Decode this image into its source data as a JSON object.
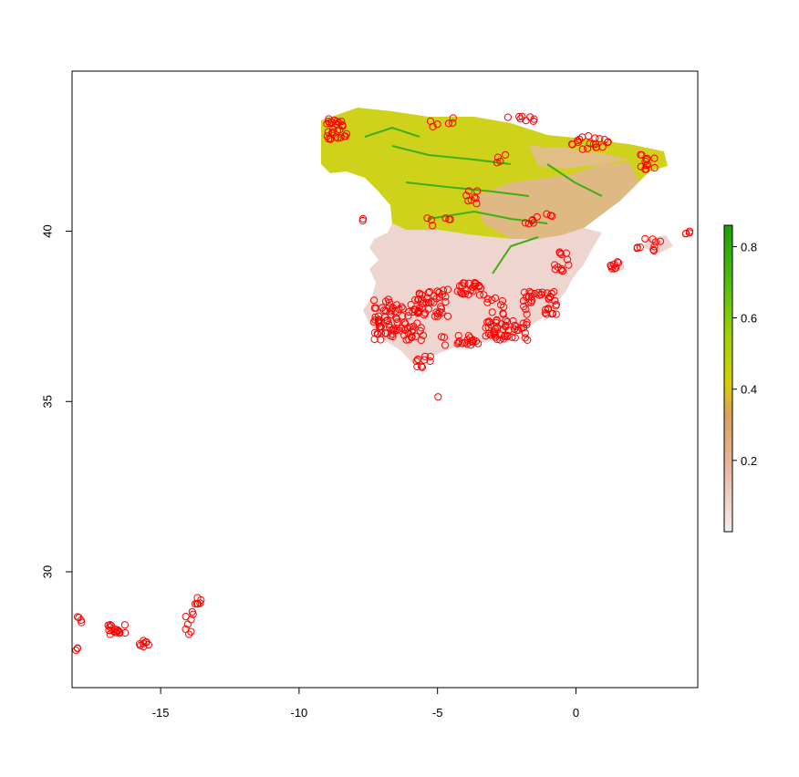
{
  "map": {
    "x_range": [
      -18.2,
      4.4
    ],
    "y_range": [
      26.6,
      44.7
    ],
    "x_ticks": [
      {
        "value": -15,
        "label": "-15"
      },
      {
        "value": -10,
        "label": "-10"
      },
      {
        "value": -5,
        "label": "-5"
      },
      {
        "value": 0,
        "label": "0"
      }
    ],
    "y_ticks": [
      {
        "value": 30,
        "label": "30"
      },
      {
        "value": 35,
        "label": "35"
      },
      {
        "value": 40,
        "label": "40"
      }
    ],
    "legend": {
      "ticks": [
        {
          "value": 0.2,
          "label": "0.2"
        },
        {
          "value": 0.4,
          "label": "0.4"
        },
        {
          "value": 0.6,
          "label": "0.6"
        },
        {
          "value": 0.8,
          "label": "0.8"
        }
      ],
      "range": [
        0,
        0.86
      ],
      "colors": [
        "#f6ecec",
        "#e9b9a2",
        "#dba05e",
        "#d8d000",
        "#9ed200",
        "#4dc000",
        "#1aa000"
      ]
    },
    "point_color": "#ff0000",
    "raster_colors": {
      "low": "#f2dcd6",
      "mid": "#e3b595",
      "high": "#c9cf12",
      "river": "#3faf10"
    }
  }
}
